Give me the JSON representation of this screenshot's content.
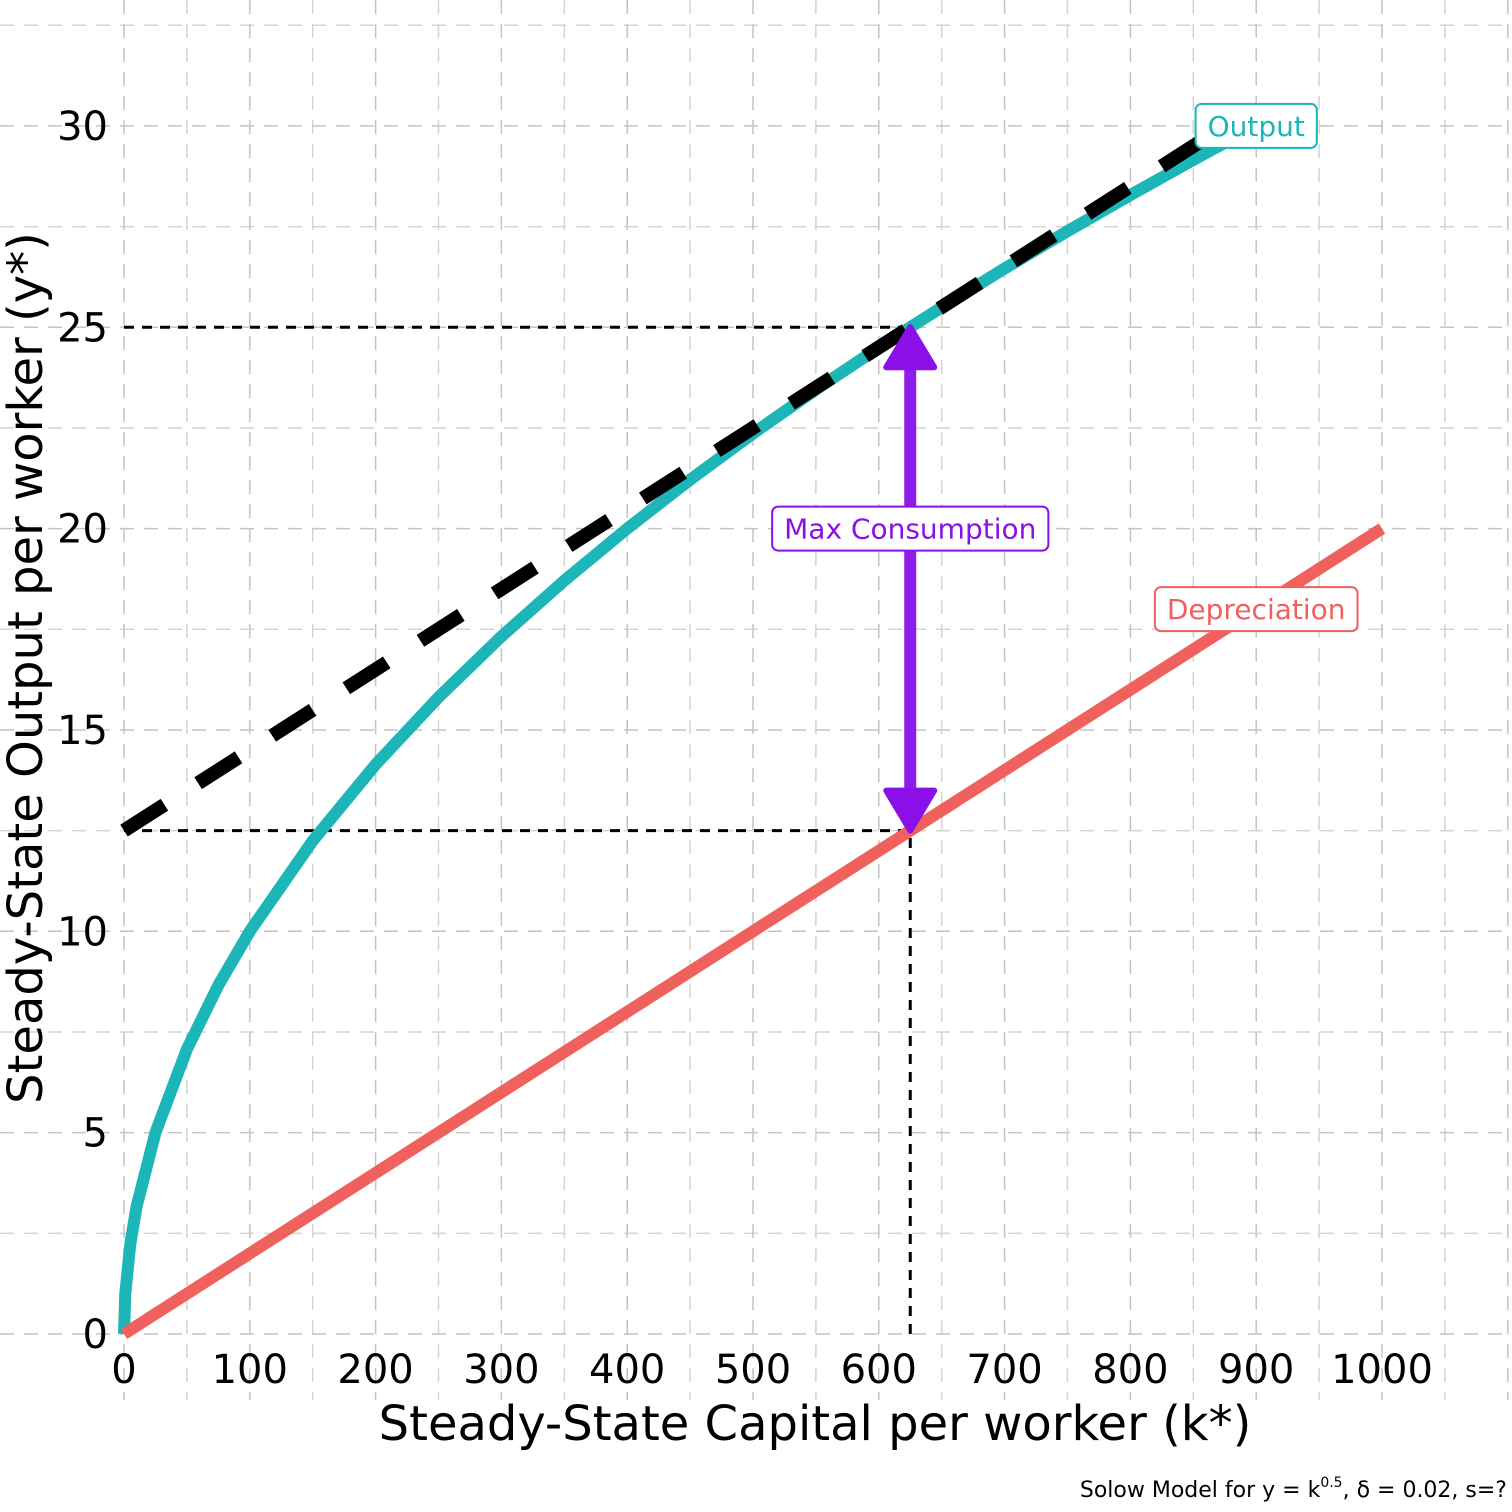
{
  "chart_data": {
    "type": "line",
    "xlabel": "Steady-State Capital per worker (k*)",
    "ylabel": "Steady-State Output per worker (y*)",
    "xlim": [
      0,
      1000
    ],
    "ylim": [
      0,
      30
    ],
    "x_ticks": [
      0,
      100,
      200,
      300,
      400,
      500,
      600,
      700,
      800,
      900,
      1000
    ],
    "y_ticks": [
      0,
      5,
      10,
      15,
      20,
      25,
      30
    ],
    "grid": true,
    "caption": {
      "prefix": "Solow Model for y = k",
      "exponent": "0.5",
      "suffix": ", δ = 0.02, s=?"
    },
    "series": [
      {
        "name": "Output",
        "color": "#1CB5B8",
        "function": "y = k^0.5",
        "x": [
          0,
          1,
          5,
          10,
          25,
          50,
          75,
          100,
          150,
          200,
          250,
          300,
          350,
          400,
          450,
          500,
          550,
          600,
          625,
          650,
          700,
          750,
          800,
          850,
          875
        ],
        "y": [
          0,
          1,
          2.236,
          3.162,
          5,
          7.071,
          8.66,
          10,
          12.247,
          14.142,
          15.811,
          17.321,
          18.708,
          20,
          21.213,
          22.361,
          23.452,
          24.495,
          25,
          25.495,
          26.458,
          27.386,
          28.284,
          29.155,
          29.58
        ]
      },
      {
        "name": "Depreciation",
        "color": "#F0605D",
        "function": "y = 0.02k",
        "x": [
          0,
          1000
        ],
        "y": [
          0,
          20
        ]
      }
    ],
    "tangent_line": {
      "color": "#000000",
      "x": [
        0,
        860
      ],
      "y": [
        12.5,
        29.7
      ]
    },
    "reference_lines": [
      {
        "type": "horizontal",
        "y": 25,
        "x": [
          0,
          625
        ]
      },
      {
        "type": "horizontal",
        "y": 12.5,
        "x": [
          0,
          625
        ]
      },
      {
        "type": "vertical",
        "x": 625,
        "y": [
          0,
          12.5
        ]
      }
    ],
    "arrow": {
      "color": "#8B10E8",
      "x": 625,
      "y_from": 12.5,
      "y_to": 25,
      "label": "Max Consumption",
      "label_y": 20
    },
    "labels": [
      {
        "text": "Output",
        "x": 900,
        "y": 30,
        "color": "#1CB5B8"
      },
      {
        "text": "Depreciation",
        "x": 900,
        "y": 18,
        "color": "#F0605D"
      }
    ]
  }
}
